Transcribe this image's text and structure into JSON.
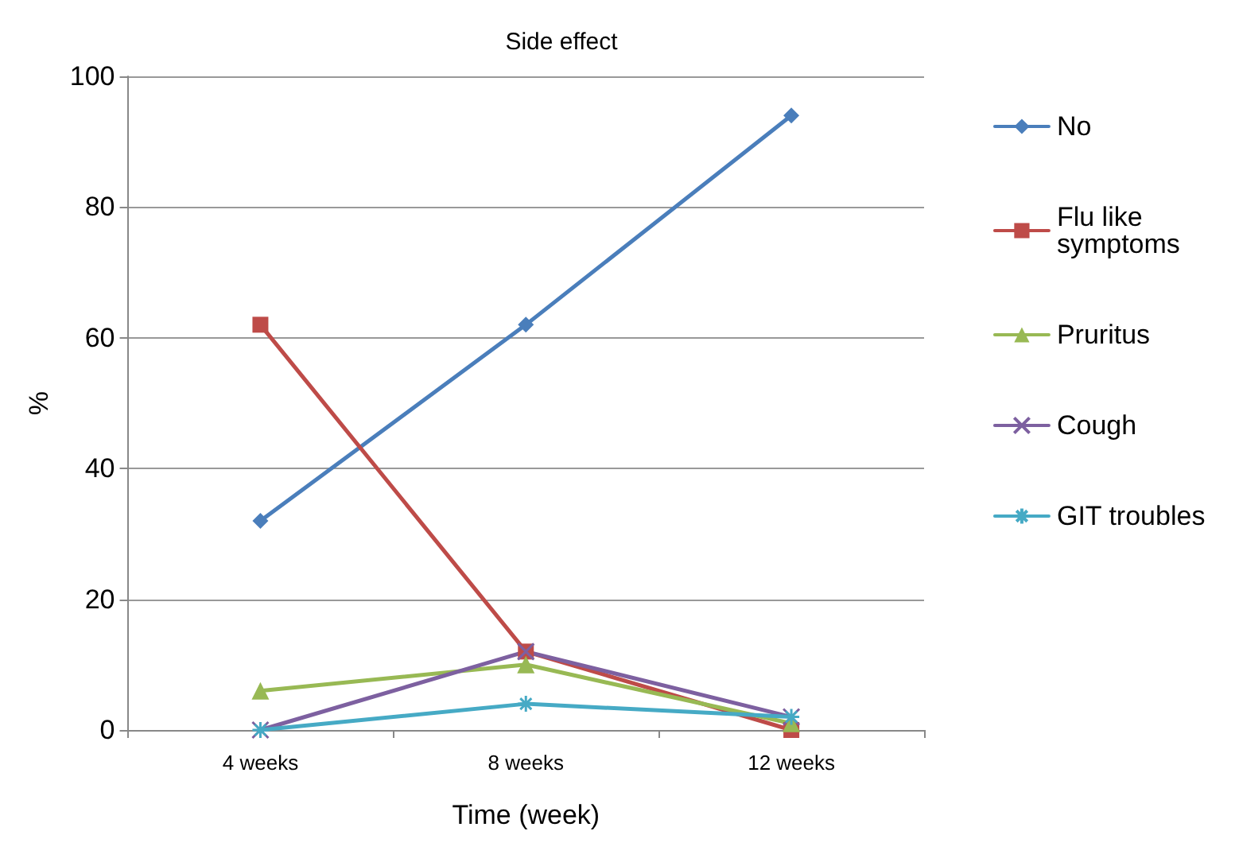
{
  "chart_data": {
    "type": "line",
    "title": "Side effect",
    "xlabel": "Time (week)",
    "ylabel": "%",
    "categories": [
      "4 weeks",
      "8 weeks",
      "12 weeks"
    ],
    "ylim": [
      0,
      100
    ],
    "yticks": [
      0,
      20,
      40,
      60,
      80,
      100
    ],
    "grid": "y",
    "legend": "right",
    "line_style": "solid",
    "series": [
      {
        "name": "No",
        "color": "#4a7ebb",
        "marker": "diamond",
        "values": [
          32,
          62,
          94
        ]
      },
      {
        "name": "Flu like symptoms",
        "color": "#be4b48",
        "marker": "square",
        "values": [
          62,
          12,
          0
        ]
      },
      {
        "name": "Pruritus",
        "color": "#98b954",
        "marker": "triangle",
        "values": [
          6,
          10,
          1
        ]
      },
      {
        "name": "Cough",
        "color": "#7d60a0",
        "marker": "cross",
        "values": [
          0,
          12,
          2
        ]
      },
      {
        "name": "GIT troubles",
        "color": "#46aac5",
        "marker": "cross",
        "values": [
          0,
          4,
          2
        ]
      }
    ]
  }
}
